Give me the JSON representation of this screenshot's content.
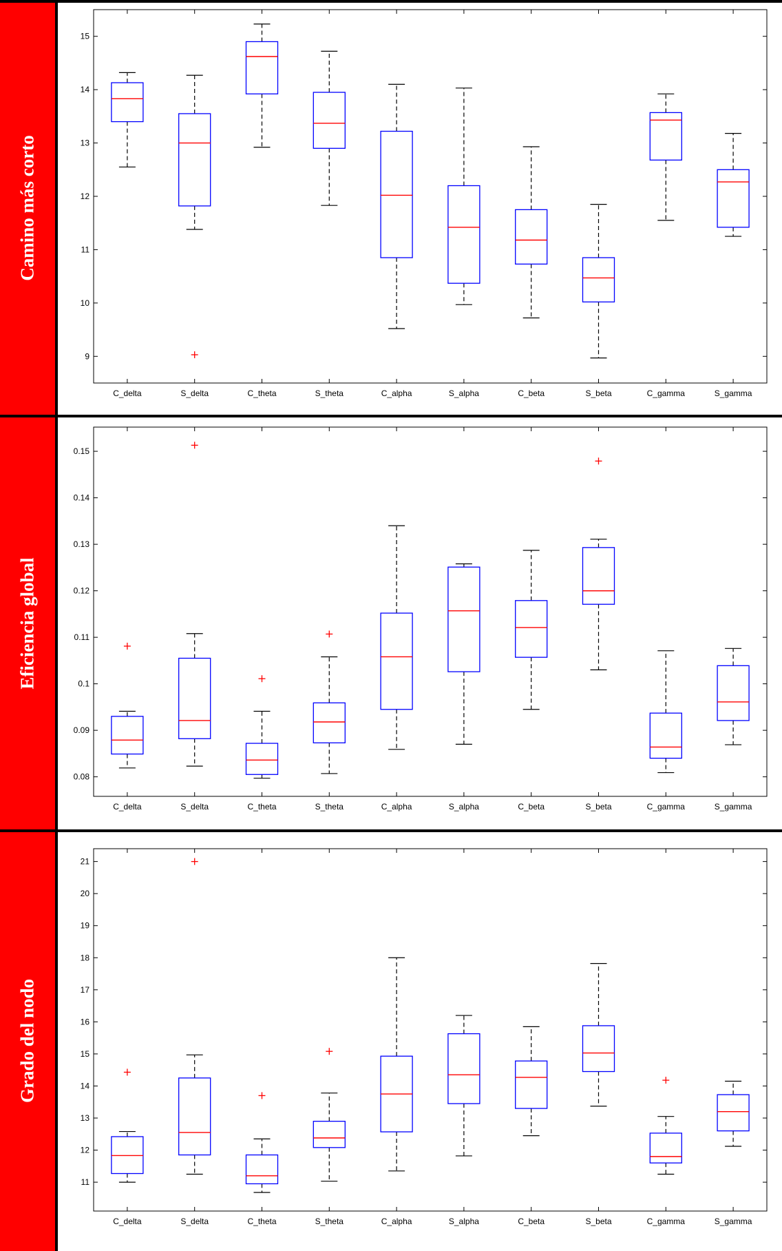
{
  "panels": [
    {
      "label": "Camino más corto"
    },
    {
      "label": "Eficiencia global"
    },
    {
      "label": "Grado del nodo"
    }
  ],
  "colors": {
    "sidebar": "#ff0000",
    "box": "#0000ff",
    "median": "#ff0000",
    "whisker": "#000000",
    "outlier": "#ff0000"
  },
  "chart_data": [
    {
      "type": "box",
      "categories": [
        "C_delta",
        "S_delta",
        "C_theta",
        "S_theta",
        "C_alpha",
        "S_alpha",
        "C_beta",
        "S_beta",
        "C_gamma",
        "S_gamma"
      ],
      "ylim": [
        8.5,
        15.5
      ],
      "yticks": [
        9,
        10,
        11,
        12,
        13,
        14,
        15
      ],
      "ytick_labels": [
        "9",
        "10",
        "11",
        "12",
        "13",
        "14",
        "15"
      ],
      "boxes": [
        {
          "whislo": 12.55,
          "q1": 13.4,
          "med": 13.83,
          "q3": 14.13,
          "whishi": 14.32,
          "fliers": []
        },
        {
          "whislo": 11.38,
          "q1": 11.82,
          "med": 13.0,
          "q3": 13.55,
          "whishi": 14.27,
          "fliers": [
            9.03
          ]
        },
        {
          "whislo": 12.92,
          "q1": 13.92,
          "med": 14.62,
          "q3": 14.9,
          "whishi": 15.23,
          "fliers": []
        },
        {
          "whislo": 11.83,
          "q1": 12.9,
          "med": 13.37,
          "q3": 13.95,
          "whishi": 14.72,
          "fliers": []
        },
        {
          "whislo": 9.52,
          "q1": 10.85,
          "med": 12.02,
          "q3": 13.22,
          "whishi": 14.1,
          "fliers": []
        },
        {
          "whislo": 9.97,
          "q1": 10.37,
          "med": 11.42,
          "q3": 12.2,
          "whishi": 14.03,
          "fliers": []
        },
        {
          "whislo": 9.72,
          "q1": 10.73,
          "med": 11.18,
          "q3": 11.75,
          "whishi": 12.93,
          "fliers": []
        },
        {
          "whislo": 8.97,
          "q1": 10.02,
          "med": 10.47,
          "q3": 10.85,
          "whishi": 11.85,
          "fliers": []
        },
        {
          "whislo": 11.55,
          "q1": 12.68,
          "med": 13.43,
          "q3": 13.57,
          "whishi": 13.92,
          "fliers": []
        },
        {
          "whislo": 11.25,
          "q1": 11.42,
          "med": 12.27,
          "q3": 12.5,
          "whishi": 13.18,
          "fliers": []
        }
      ]
    },
    {
      "type": "box",
      "categories": [
        "C_delta",
        "S_delta",
        "C_theta",
        "S_theta",
        "C_alpha",
        "S_alpha",
        "C_beta",
        "S_beta",
        "C_gamma",
        "S_gamma"
      ],
      "ylim": [
        0.0758,
        0.1552
      ],
      "yticks": [
        0.08,
        0.09,
        0.1,
        0.11,
        0.12,
        0.13,
        0.14,
        0.15
      ],
      "ytick_labels": [
        "0.08",
        "0.09",
        "0.1",
        "0.11",
        "0.12",
        "0.13",
        "0.14",
        "0.15"
      ],
      "boxes": [
        {
          "whislo": 0.0819,
          "q1": 0.0849,
          "med": 0.0879,
          "q3": 0.093,
          "whishi": 0.0941,
          "fliers": [
            0.1081
          ]
        },
        {
          "whislo": 0.0823,
          "q1": 0.0882,
          "med": 0.0921,
          "q3": 0.1055,
          "whishi": 0.1108,
          "fliers": [
            0.1513
          ]
        },
        {
          "whislo": 0.0797,
          "q1": 0.0805,
          "med": 0.0836,
          "q3": 0.0872,
          "whishi": 0.0941,
          "fliers": [
            0.1011
          ]
        },
        {
          "whislo": 0.0807,
          "q1": 0.0873,
          "med": 0.0918,
          "q3": 0.0959,
          "whishi": 0.1058,
          "fliers": [
            0.1107
          ]
        },
        {
          "whislo": 0.0859,
          "q1": 0.0945,
          "med": 0.1058,
          "q3": 0.1152,
          "whishi": 0.134,
          "fliers": []
        },
        {
          "whislo": 0.087,
          "q1": 0.1026,
          "med": 0.1157,
          "q3": 0.1251,
          "whishi": 0.1258,
          "fliers": []
        },
        {
          "whislo": 0.0945,
          "q1": 0.1057,
          "med": 0.1121,
          "q3": 0.1179,
          "whishi": 0.1287,
          "fliers": []
        },
        {
          "whislo": 0.103,
          "q1": 0.1171,
          "med": 0.12,
          "q3": 0.1293,
          "whishi": 0.1311,
          "fliers": [
            0.1479
          ]
        },
        {
          "whislo": 0.0809,
          "q1": 0.084,
          "med": 0.0864,
          "q3": 0.0937,
          "whishi": 0.1071,
          "fliers": []
        },
        {
          "whislo": 0.0869,
          "q1": 0.0921,
          "med": 0.0961,
          "q3": 0.1039,
          "whishi": 0.1076,
          "fliers": []
        }
      ]
    },
    {
      "type": "box",
      "categories": [
        "C_delta",
        "S_delta",
        "C_theta",
        "S_theta",
        "C_alpha",
        "S_alpha",
        "C_beta",
        "S_beta",
        "C_gamma",
        "S_gamma"
      ],
      "ylim": [
        10.1,
        21.4
      ],
      "yticks": [
        11,
        12,
        13,
        14,
        15,
        16,
        17,
        18,
        19,
        20,
        21
      ],
      "ytick_labels": [
        "11",
        "12",
        "13",
        "14",
        "15",
        "16",
        "17",
        "18",
        "19",
        "20",
        "21"
      ],
      "boxes": [
        {
          "whislo": 11.0,
          "q1": 11.27,
          "med": 11.83,
          "q3": 12.42,
          "whishi": 12.58,
          "fliers": [
            14.43
          ]
        },
        {
          "whislo": 11.25,
          "q1": 11.85,
          "med": 12.55,
          "q3": 14.25,
          "whishi": 14.97,
          "fliers": [
            21.0
          ]
        },
        {
          "whislo": 10.68,
          "q1": 10.95,
          "med": 11.2,
          "q3": 11.85,
          "whishi": 12.35,
          "fliers": [
            13.7
          ]
        },
        {
          "whislo": 11.03,
          "q1": 12.08,
          "med": 12.38,
          "q3": 12.9,
          "whishi": 13.78,
          "fliers": [
            15.08
          ]
        },
        {
          "whislo": 11.35,
          "q1": 12.57,
          "med": 13.75,
          "q3": 14.93,
          "whishi": 18.0,
          "fliers": []
        },
        {
          "whislo": 11.82,
          "q1": 13.45,
          "med": 14.35,
          "q3": 15.63,
          "whishi": 16.2,
          "fliers": []
        },
        {
          "whislo": 12.45,
          "q1": 13.3,
          "med": 14.27,
          "q3": 14.78,
          "whishi": 15.85,
          "fliers": []
        },
        {
          "whislo": 13.37,
          "q1": 14.45,
          "med": 15.03,
          "q3": 15.88,
          "whishi": 17.82,
          "fliers": []
        },
        {
          "whislo": 11.25,
          "q1": 11.6,
          "med": 11.8,
          "q3": 12.53,
          "whishi": 13.05,
          "fliers": [
            14.18
          ]
        },
        {
          "whislo": 12.12,
          "q1": 12.6,
          "med": 13.2,
          "q3": 13.73,
          "whishi": 14.15,
          "fliers": []
        }
      ]
    }
  ]
}
